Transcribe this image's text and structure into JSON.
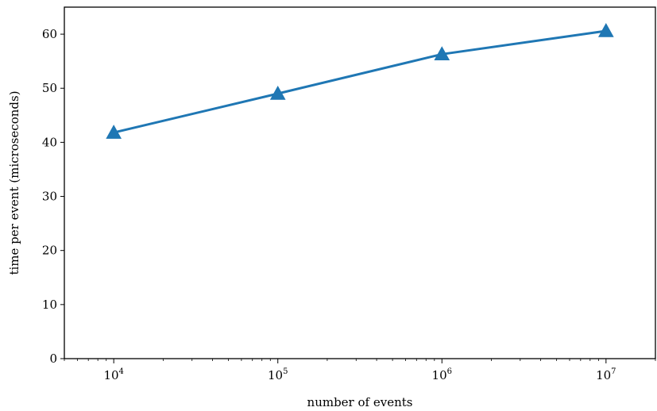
{
  "chart_data": {
    "type": "line",
    "title": "",
    "xlabel": "number of events",
    "ylabel": "time per event (microseconds)",
    "xscale": "log",
    "xlim": [
      5000,
      20000000
    ],
    "ylim": [
      0,
      65
    ],
    "grid": false,
    "x_ticks": [
      {
        "base": "10",
        "exp": "4",
        "value": 10000
      },
      {
        "base": "10",
        "exp": "5",
        "value": 100000
      },
      {
        "base": "10",
        "exp": "6",
        "value": 1000000
      },
      {
        "base": "10",
        "exp": "7",
        "value": 10000000
      }
    ],
    "y_ticks": [
      "0",
      "10",
      "20",
      "30",
      "40",
      "50",
      "60"
    ],
    "series": [
      {
        "marker": "triangle-up",
        "color": "#1f77b4",
        "x": [
          10000,
          100000,
          1000000,
          10000000
        ],
        "y": [
          41.8,
          49.0,
          56.3,
          60.6
        ]
      }
    ]
  }
}
